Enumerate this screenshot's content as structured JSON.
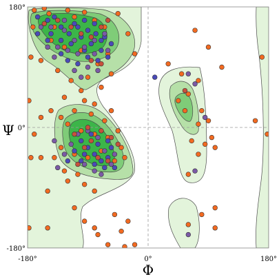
{
  "chart_data": {
    "type": "scatter",
    "title": "",
    "xlabel": "Φ",
    "ylabel": "Ψ",
    "xlim": [
      -180,
      180
    ],
    "ylim": [
      -180,
      180
    ],
    "x_ticks": [
      {
        "value": -180,
        "label": "-180°"
      },
      {
        "value": 0,
        "label": "0°"
      },
      {
        "value": 180,
        "label": "180°"
      }
    ],
    "y_ticks": [
      {
        "value": 180,
        "label": "180°"
      },
      {
        "value": 0,
        "label": "0°"
      },
      {
        "value": -180,
        "label": "-180°"
      }
    ],
    "grid": "dashed lines at 0",
    "colors": {
      "favored_region": "#3cb549",
      "favored_mid": "#7fcc78",
      "allowed_region": "#b6e0a8",
      "generous_region": "#e3f4db",
      "contour_stroke": "#4a4a4a",
      "point_a": "#f26a21",
      "point_b": "#4a4ab8",
      "point_c": "#7b5aa6",
      "point_d": "#c8503c"
    },
    "series": [
      {
        "color": "#f26a21",
        "points": [
          [
            -170,
            175
          ],
          [
            -155,
            178
          ],
          [
            -148,
            170
          ],
          [
            -172,
            150
          ],
          [
            -140,
            150
          ],
          [
            -120,
            175
          ],
          [
            -110,
            165
          ],
          [
            -95,
            172
          ],
          [
            -80,
            160
          ],
          [
            -65,
            150
          ],
          [
            -45,
            170
          ],
          [
            -30,
            140
          ],
          [
            -20,
            110
          ],
          [
            -60,
            110
          ],
          [
            -75,
            95
          ],
          [
            -100,
            115
          ],
          [
            -125,
            120
          ],
          [
            -145,
            130
          ],
          [
            -160,
            100
          ],
          [
            -175,
            105
          ],
          [
            -135,
            85
          ],
          [
            -115,
            70
          ],
          [
            -90,
            75
          ],
          [
            -70,
            60
          ],
          [
            -55,
            80
          ],
          [
            -95,
            40
          ],
          [
            -85,
            20
          ],
          [
            -110,
            25
          ],
          [
            -130,
            15
          ],
          [
            -145,
            25
          ],
          [
            -120,
            5
          ],
          [
            -100,
            -5
          ],
          [
            -80,
            -10
          ],
          [
            -60,
            -15
          ],
          [
            -40,
            -30
          ],
          [
            -35,
            -45
          ],
          [
            -50,
            -50
          ],
          [
            -70,
            -35
          ],
          [
            -90,
            -45
          ],
          [
            -110,
            -40
          ],
          [
            -130,
            -30
          ],
          [
            -160,
            -45
          ],
          [
            -175,
            -45
          ],
          [
            -105,
            -70
          ],
          [
            -95,
            -85
          ],
          [
            -80,
            -95
          ],
          [
            -120,
            -80
          ],
          [
            -150,
            -95
          ],
          [
            -110,
            -120
          ],
          [
            -95,
            -140
          ],
          [
            -80,
            -150
          ],
          [
            -75,
            -160
          ],
          [
            -60,
            -175
          ],
          [
            -40,
            -155
          ],
          [
            -30,
            -140
          ],
          [
            -50,
            -130
          ],
          [
            -125,
            -65
          ],
          [
            -140,
            -45
          ],
          [
            -160,
            15
          ],
          [
            -170,
            -10
          ],
          [
            -80,
            35
          ],
          [
            -65,
            10
          ],
          [
            -45,
            -5
          ],
          [
            -100,
            55
          ],
          [
            -125,
            45
          ],
          [
            -55,
            25
          ],
          [
            70,
            145
          ],
          [
            90,
            120
          ],
          [
            110,
            90
          ],
          [
            30,
            95
          ],
          [
            50,
            80
          ],
          [
            75,
            70
          ],
          [
            60,
            50
          ],
          [
            45,
            40
          ],
          [
            80,
            25
          ],
          [
            90,
            10
          ],
          [
            95,
            -15
          ],
          [
            85,
            -25
          ],
          [
            65,
            -20
          ],
          [
            75,
            5
          ],
          [
            100,
            -30
          ],
          [
            60,
            -70
          ],
          [
            80,
            -130
          ],
          [
            60,
            -145
          ],
          [
            100,
            -150
          ],
          [
            160,
            10
          ],
          [
            170,
            105
          ],
          [
            178,
            -10
          ],
          [
            -178,
            40
          ],
          [
            -178,
            -150
          ],
          [
            -150,
            -150
          ],
          [
            -20,
            -175
          ],
          [
            -35,
            -178
          ],
          [
            100,
            -120
          ],
          [
            75,
            -40
          ],
          [
            55,
            25
          ]
        ]
      },
      {
        "color": "#4a4ab8",
        "points": [
          [
            -165,
            165
          ],
          [
            -150,
            160
          ],
          [
            -140,
            165
          ],
          [
            -130,
            150
          ],
          [
            -118,
            140
          ],
          [
            -105,
            150
          ],
          [
            -90,
            145
          ],
          [
            -78,
            140
          ],
          [
            -65,
            135
          ],
          [
            -55,
            125
          ],
          [
            -145,
            140
          ],
          [
            -130,
            130
          ],
          [
            -115,
            125
          ],
          [
            -100,
            135
          ],
          [
            -85,
            125
          ],
          [
            -70,
            115
          ],
          [
            -120,
            100
          ],
          [
            -105,
            95
          ],
          [
            -90,
            105
          ],
          [
            -75,
            100
          ],
          [
            -60,
            105
          ],
          [
            -130,
            110
          ],
          [
            -95,
            160
          ],
          [
            -110,
            155
          ],
          [
            -80,
            155
          ],
          [
            -150,
            130
          ],
          [
            -165,
            140
          ],
          [
            -100,
            -20
          ],
          [
            -90,
            -30
          ],
          [
            -80,
            -40
          ],
          [
            -70,
            -50
          ],
          [
            -60,
            -45
          ],
          [
            -55,
            -30
          ],
          [
            -75,
            -25
          ],
          [
            -85,
            -10
          ],
          [
            -95,
            -40
          ],
          [
            -65,
            -60
          ],
          [
            -110,
            -35
          ],
          [
            -60,
            -20
          ],
          [
            -120,
            -50
          ],
          [
            -100,
            -50
          ],
          [
            10,
            75
          ],
          [
            -70,
            130
          ],
          [
            -95,
            115
          ],
          [
            -50,
            -60
          ],
          [
            -80,
            -55
          ]
        ]
      },
      {
        "color": "#7b5aa6",
        "points": [
          [
            -160,
            150
          ],
          [
            -145,
            150
          ],
          [
            -125,
            145
          ],
          [
            -110,
            130
          ],
          [
            -95,
            120
          ],
          [
            -80,
            130
          ],
          [
            -65,
            140
          ],
          [
            -60,
            115
          ],
          [
            -135,
            120
          ],
          [
            -120,
            115
          ],
          [
            -105,
            110
          ],
          [
            -90,
            90
          ],
          [
            -75,
            85
          ],
          [
            -140,
            105
          ],
          [
            -100,
            75
          ],
          [
            -80,
            110
          ],
          [
            -125,
            160
          ],
          [
            -90,
            -5
          ],
          [
            -75,
            -15
          ],
          [
            -65,
            -35
          ],
          [
            -50,
            -40
          ],
          [
            -105,
            -10
          ],
          [
            -115,
            -25
          ],
          [
            -95,
            -55
          ],
          [
            -80,
            -65
          ],
          [
            -70,
            -70
          ],
          [
            -125,
            -40
          ],
          [
            -140,
            -20
          ],
          [
            -135,
            -60
          ],
          [
            -55,
            -55
          ],
          [
            60,
            80
          ],
          [
            70,
            65
          ],
          [
            85,
            15
          ],
          [
            70,
            -65
          ],
          [
            60,
            -160
          ],
          [
            -110,
            85
          ],
          [
            -150,
            120
          ]
        ]
      },
      {
        "color": "#c8503c",
        "points": [
          [
            -155,
            155
          ],
          [
            -135,
            160
          ],
          [
            -115,
            150
          ],
          [
            -100,
            140
          ],
          [
            -85,
            135
          ],
          [
            -70,
            150
          ],
          [
            -60,
            160
          ],
          [
            -85,
            100
          ],
          [
            -70,
            95
          ],
          [
            -110,
            -10
          ],
          [
            -85,
            -20
          ],
          [
            -70,
            -5
          ],
          [
            -55,
            -15
          ],
          [
            -45,
            -25
          ],
          [
            -95,
            -30
          ],
          [
            -60,
            -50
          ],
          [
            -75,
            -45
          ],
          [
            -105,
            -55
          ],
          [
            55,
            55
          ],
          [
            -90,
            0
          ]
        ]
      }
    ]
  }
}
